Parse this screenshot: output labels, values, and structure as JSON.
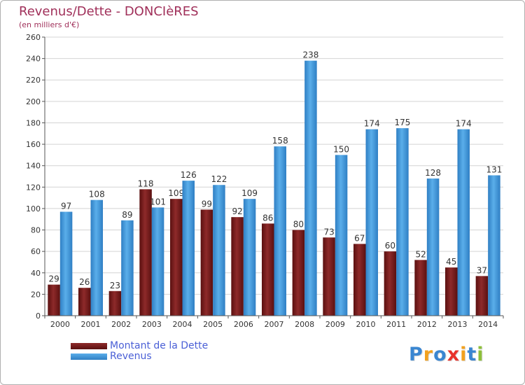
{
  "title": "Revenus/Dette - DONCIèRES",
  "subtitle": "(en milliers d'€)",
  "logo": {
    "parts": [
      "P",
      "r",
      "o",
      "x",
      "i",
      "t",
      "i"
    ],
    "colors": [
      "#3a86d1",
      "#f2a11e",
      "#3a86d1",
      "#e8322b",
      "#f2a11e",
      "#3a86d1",
      "#8dbf3a"
    ]
  },
  "chart_data": {
    "type": "bar",
    "categories": [
      "2000",
      "2001",
      "2002",
      "2003",
      "2004",
      "2005",
      "2006",
      "2007",
      "2008",
      "2009",
      "2010",
      "2011",
      "2012",
      "2013",
      "2014"
    ],
    "series": [
      {
        "name": "Montant de la Dette",
        "color": "#7a1c1c",
        "values": [
          29,
          26,
          23,
          118,
          109,
          99,
          92,
          86,
          80,
          73,
          67,
          60,
          52,
          45,
          37
        ]
      },
      {
        "name": "Revenus",
        "color": "#3d93d8",
        "values": [
          97,
          108,
          89,
          101,
          126,
          122,
          109,
          158,
          238,
          150,
          174,
          175,
          128,
          174,
          131
        ]
      }
    ],
    "ylim": [
      0,
      260
    ],
    "yticks": [
      0,
      20,
      40,
      60,
      80,
      100,
      120,
      140,
      160,
      180,
      200,
      220,
      240,
      260
    ],
    "grid": true,
    "legend_position": "bottom-left"
  }
}
